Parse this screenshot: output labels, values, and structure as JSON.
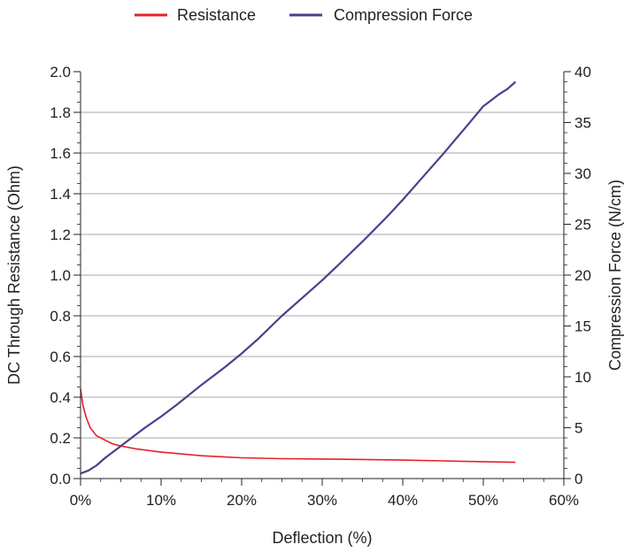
{
  "chart_data": {
    "type": "line",
    "xlabel": "Deflection (%)",
    "ylabel_left": "DC Through Resistance (Ohm)",
    "ylabel_right": "Compression Force (N/cm)",
    "xlim": [
      0,
      60
    ],
    "ylim_left": [
      0,
      2.0
    ],
    "ylim_right": [
      0,
      40
    ],
    "x_ticks": [
      "0%",
      "10%",
      "20%",
      "30%",
      "40%",
      "50%",
      "60%"
    ],
    "y_left_ticks": [
      "0.0",
      "0.2",
      "0.4",
      "0.6",
      "0.8",
      "1.0",
      "1.2",
      "1.4",
      "1.6",
      "1.8",
      "2.0"
    ],
    "y_right_ticks": [
      "0",
      "5",
      "10",
      "15",
      "20",
      "25",
      "30",
      "35",
      "40"
    ],
    "grid": "horizontal",
    "legend_position": "top-center",
    "series": [
      {
        "name": "Resistance",
        "axis": "left",
        "color": "#e8202a",
        "x": [
          0,
          0.3,
          0.7,
          1.2,
          2,
          3,
          4,
          5,
          7,
          10,
          15,
          20,
          25,
          30,
          35,
          40,
          45,
          50,
          54
        ],
        "y": [
          0.44,
          0.36,
          0.3,
          0.25,
          0.21,
          0.19,
          0.17,
          0.16,
          0.145,
          0.13,
          0.112,
          0.102,
          0.098,
          0.096,
          0.094,
          0.091,
          0.087,
          0.083,
          0.08
        ]
      },
      {
        "name": "Compression Force",
        "axis": "right",
        "color": "#4a3f8f",
        "x": [
          0,
          1,
          2,
          3,
          4,
          5,
          6,
          8,
          10,
          12,
          15,
          18,
          20,
          22,
          25,
          28,
          30,
          32,
          35,
          38,
          40,
          42,
          45,
          48,
          50,
          51,
          52,
          53,
          54
        ],
        "y": [
          0.5,
          0.8,
          1.3,
          2.0,
          2.6,
          3.2,
          3.8,
          5.0,
          6.1,
          7.3,
          9.2,
          11.0,
          12.3,
          13.7,
          16.0,
          18.1,
          19.5,
          21.0,
          23.3,
          25.7,
          27.4,
          29.2,
          31.9,
          34.7,
          36.6,
          37.2,
          37.8,
          38.3,
          39.0
        ]
      }
    ]
  }
}
